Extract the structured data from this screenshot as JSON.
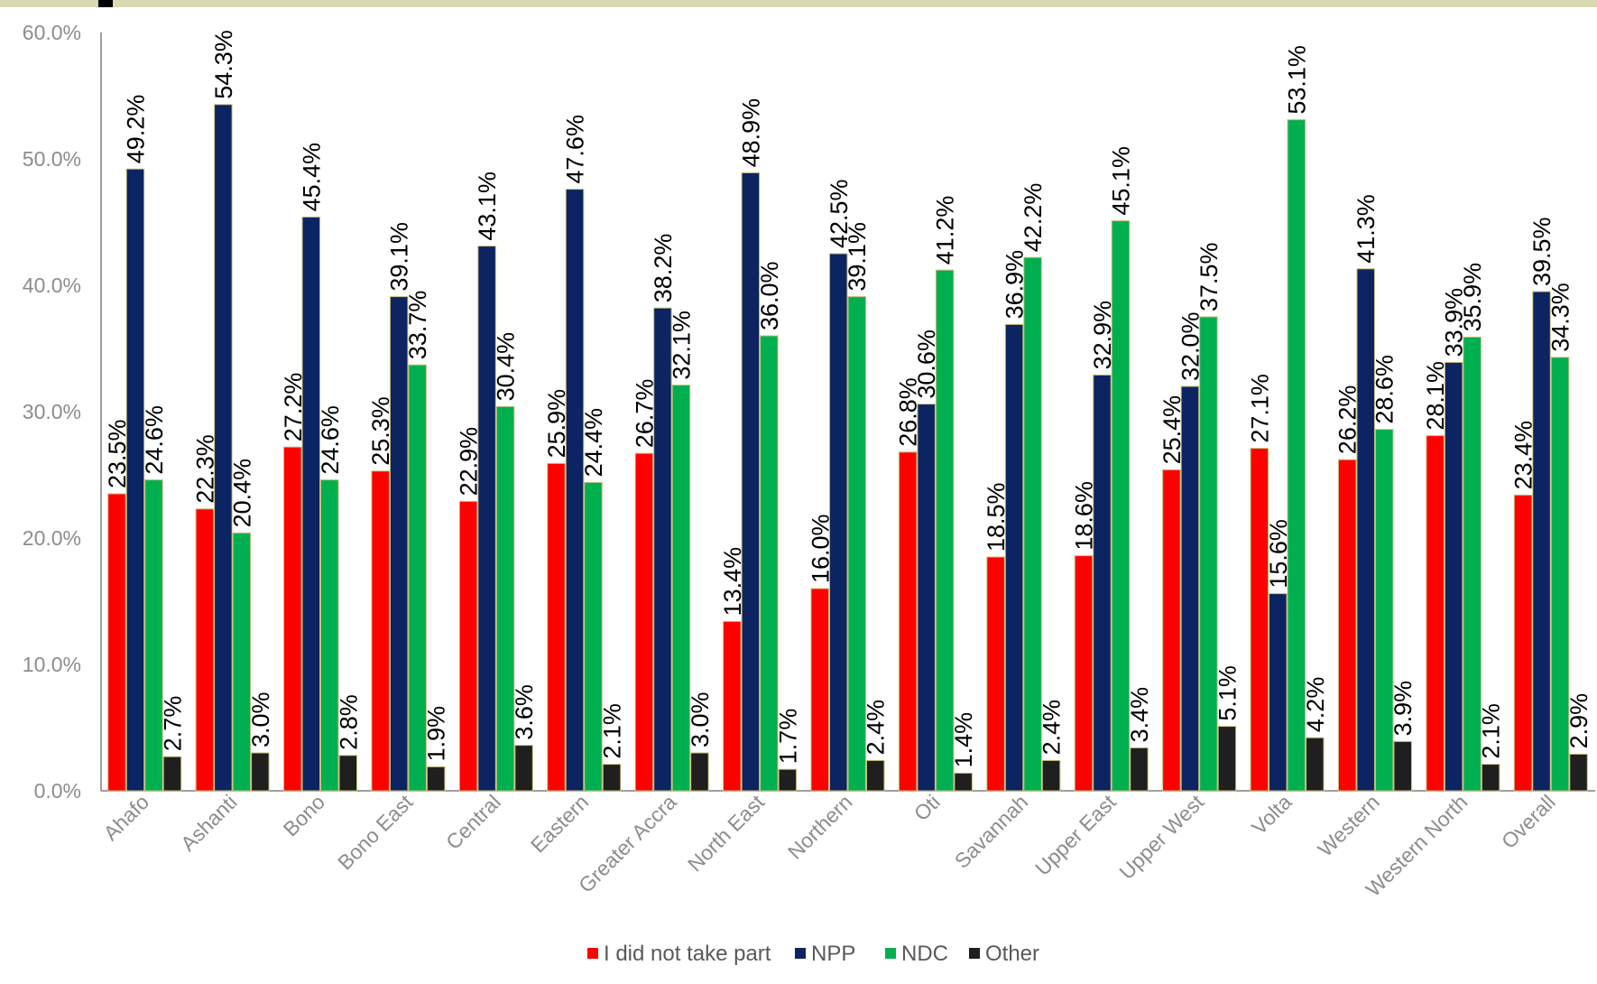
{
  "chart_data": {
    "type": "bar",
    "ylim": [
      0,
      60
    ],
    "y_ticks": [
      "0.0%",
      "10.0%",
      "20.0%",
      "30.0%",
      "40.0%",
      "50.0%",
      "60.0%"
    ],
    "y_tick_values": [
      0,
      10,
      20,
      30,
      40,
      50,
      60
    ],
    "legend_position": "bottom",
    "grid": false,
    "categories": [
      "Ahafo",
      "Ashanti",
      "Bono",
      "Bono East",
      "Central",
      "Eastern",
      "Greater Accra",
      "North East",
      "Northern",
      "Oti",
      "Savannah",
      "Upper East",
      "Upper West",
      "Volta",
      "Western",
      "Western North",
      "Overall"
    ],
    "series": [
      {
        "name": "I did not take part",
        "color": "#ff0000",
        "values": [
          23.5,
          22.3,
          27.2,
          25.3,
          22.9,
          25.9,
          26.7,
          13.4,
          16.0,
          26.8,
          18.5,
          18.6,
          25.4,
          27.1,
          26.2,
          28.1,
          23.4
        ],
        "labels": [
          "23.5%",
          "22.3%",
          "27.2%",
          "25.3%",
          "22.9%",
          "25.9%",
          "26.7%",
          "13.4%",
          "16.0%",
          "26.8%",
          "18.5%",
          "18.6%",
          "25.4%",
          "27.1%",
          "26.2%",
          "28.1%",
          "23.4%"
        ]
      },
      {
        "name": "NPP",
        "color": "#0c2461",
        "values": [
          49.2,
          54.3,
          45.4,
          39.1,
          43.1,
          47.6,
          38.2,
          48.9,
          42.5,
          30.6,
          36.9,
          32.9,
          32.0,
          15.6,
          41.3,
          33.9,
          39.5
        ],
        "labels": [
          "49.2%",
          "54.3%",
          "45.4%",
          "39.1%",
          "43.1%",
          "47.6%",
          "38.2%",
          "48.9%",
          "42.5%",
          "30.6%",
          "36.9%",
          "32.9%",
          "32.0%",
          "15.6%",
          "41.3%",
          "33.9%",
          "39.5%"
        ]
      },
      {
        "name": "NDC",
        "color": "#00b050",
        "values": [
          24.6,
          20.4,
          24.6,
          33.7,
          30.4,
          24.4,
          32.1,
          36.0,
          39.1,
          41.2,
          42.2,
          45.1,
          37.5,
          53.1,
          28.6,
          35.9,
          34.3
        ],
        "labels": [
          "24.6%",
          "20.4%",
          "24.6%",
          "33.7%",
          "30.4%",
          "24.4%",
          "32.1%",
          "36.0%",
          "39.1%",
          "41.2%",
          "42.2%",
          "45.1%",
          "37.5%",
          "53.1%",
          "28.6%",
          "35.9%",
          "34.3%"
        ]
      },
      {
        "name": "Other",
        "color": "#1f1f1f",
        "values": [
          2.7,
          3.0,
          2.8,
          1.9,
          3.6,
          2.1,
          3.0,
          1.7,
          2.4,
          1.4,
          2.4,
          3.4,
          5.1,
          4.2,
          3.9,
          2.1,
          2.9
        ],
        "labels": [
          "2.7%",
          "3.0%",
          "2.8%",
          "1.9%",
          "3.6%",
          "2.1%",
          "3.0%",
          "1.7%",
          "2.4%",
          "1.4%",
          "2.4%",
          "3.4%",
          "5.1%",
          "4.2%",
          "3.9%",
          "2.1%",
          "2.9%"
        ]
      }
    ]
  }
}
